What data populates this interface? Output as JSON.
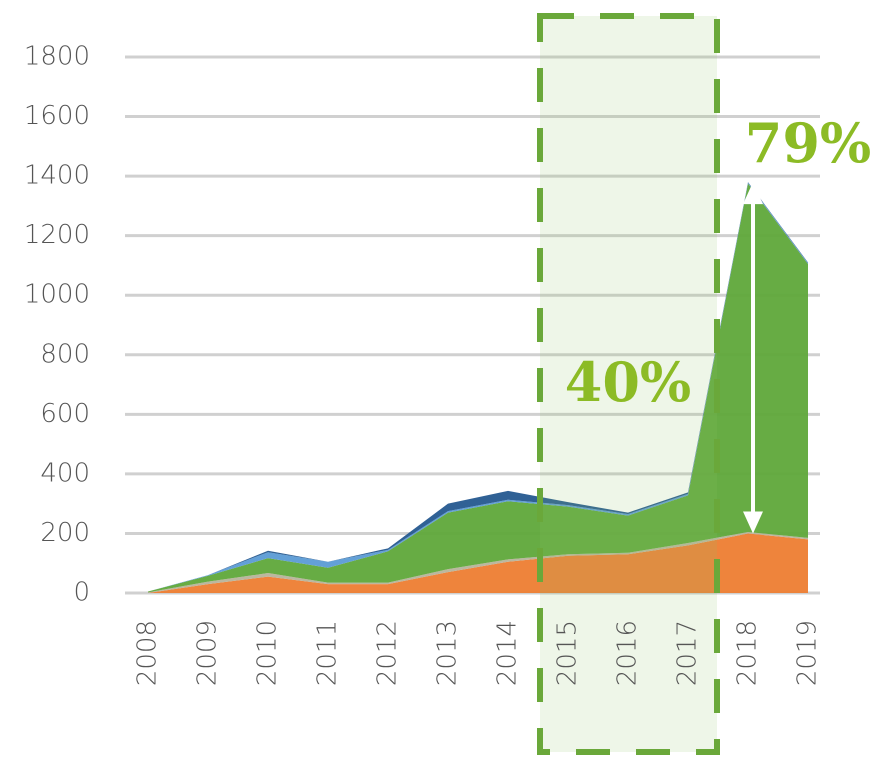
{
  "chart_data": {
    "type": "stacked-area",
    "categories": [
      "2008",
      "2009",
      "2010",
      "2011",
      "2012",
      "2013",
      "2014",
      "2015",
      "2016",
      "2017",
      "2018",
      "2019"
    ],
    "series": [
      {
        "color": "#ed7d31",
        "values": [
          0,
          30,
          55,
          30,
          30,
          70,
          105,
          125,
          130,
          160,
          200,
          180
        ]
      },
      {
        "color": "#b7b39a",
        "values": [
          2,
          8,
          12,
          5,
          5,
          10,
          8,
          5,
          5,
          8,
          5,
          5
        ]
      },
      {
        "color": "#5fa83a",
        "values": [
          3,
          20,
          50,
          50,
          105,
          190,
          195,
          160,
          125,
          160,
          1170,
          920
        ]
      },
      {
        "color": "#5b9bd5",
        "values": [
          0,
          2,
          20,
          20,
          5,
          5,
          5,
          5,
          5,
          5,
          3,
          3
        ]
      },
      {
        "color": "#25598f",
        "values": [
          0,
          0,
          5,
          0,
          5,
          25,
          30,
          10,
          5,
          5,
          2,
          2
        ]
      }
    ],
    "ylim": [
      0,
      1800
    ],
    "yticks": [
      0,
      200,
      400,
      600,
      800,
      1000,
      1200,
      1400,
      1600,
      1800
    ],
    "grid": true,
    "annotations": [
      {
        "text": "40%"
      },
      {
        "text": "79%"
      }
    ]
  }
}
